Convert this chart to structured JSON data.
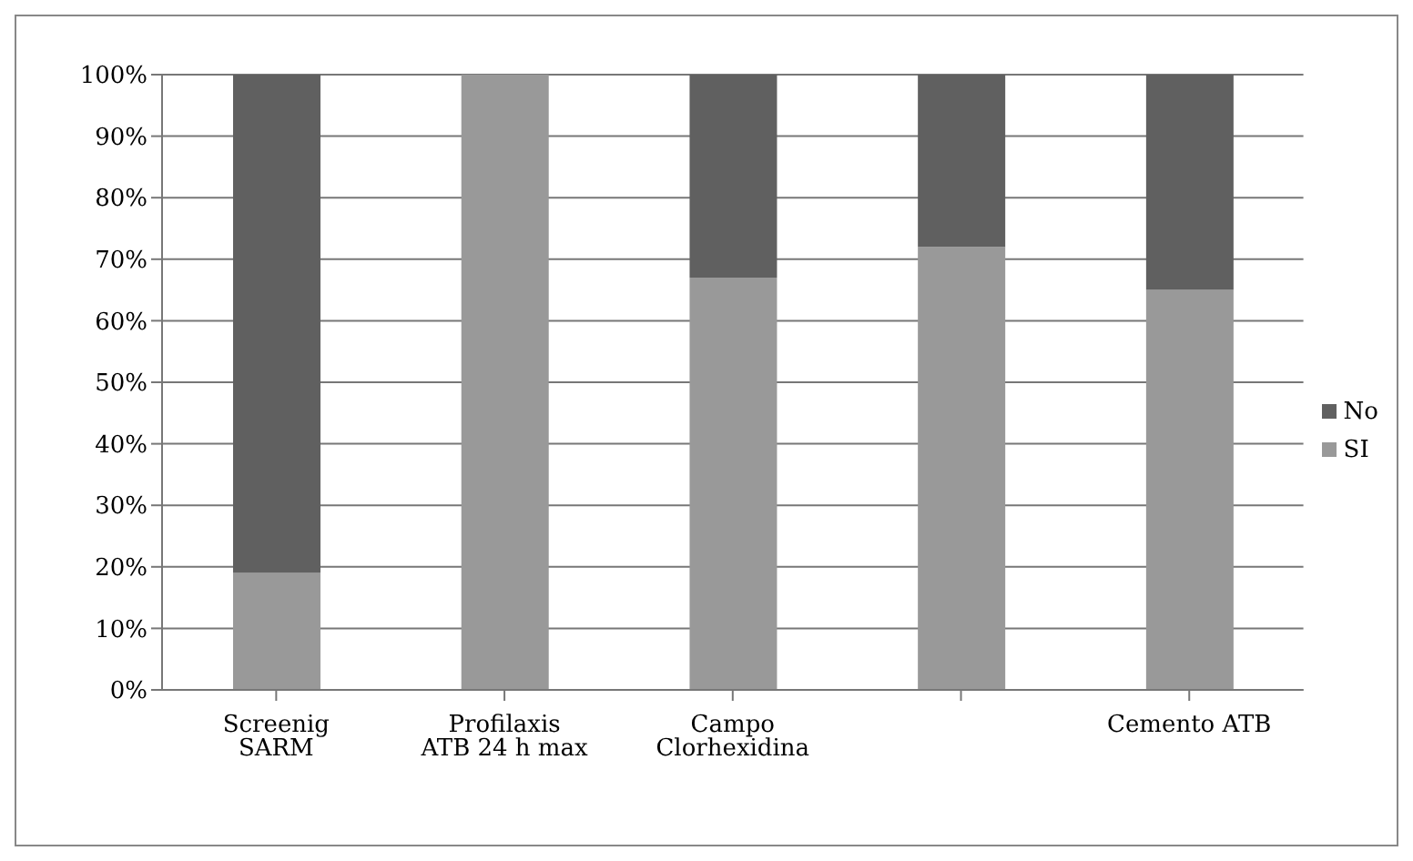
{
  "chart_data": {
    "type": "bar",
    "stacked": true,
    "categories": [
      "Screenig SARM",
      "Profilaxis ATB 24 h max",
      "Campo Clorhexidina",
      null,
      "Cemento ATB"
    ],
    "series": [
      {
        "name": "SI",
        "color": "#999999",
        "values": [
          19,
          100,
          67,
          72,
          65
        ]
      },
      {
        "name": "No",
        "color": "#606060",
        "values": [
          81,
          0,
          33,
          28,
          35
        ]
      }
    ],
    "ylim": [
      0,
      100
    ],
    "yticks": [
      {
        "value": 0,
        "label": "0%"
      },
      {
        "value": 10,
        "label": "10%"
      },
      {
        "value": 20,
        "label": "20%"
      },
      {
        "value": 30,
        "label": "30%"
      },
      {
        "value": 40,
        "label": "40%"
      },
      {
        "value": 50,
        "label": "50%"
      },
      {
        "value": 60,
        "label": "60%"
      },
      {
        "value": 70,
        "label": "70%"
      },
      {
        "value": 80,
        "label": "80%"
      },
      {
        "value": 90,
        "label": "90%"
      },
      {
        "value": 100,
        "label": "100%"
      }
    ],
    "grid": "y",
    "legend": "right"
  }
}
